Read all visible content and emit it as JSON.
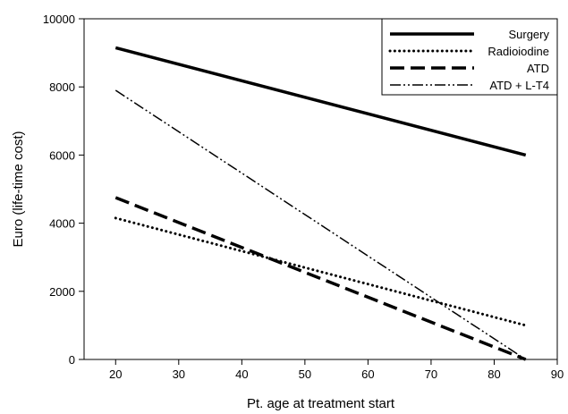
{
  "chart_data": {
    "type": "line",
    "title": "",
    "xlabel": "Pt. age at treatment start",
    "ylabel": "Euro (life-time cost)",
    "xlim": [
      15,
      90
    ],
    "ylim": [
      0,
      10000
    ],
    "xticks": [
      20,
      30,
      40,
      50,
      60,
      70,
      80,
      90
    ],
    "yticks": [
      0,
      2000,
      4000,
      6000,
      8000,
      10000
    ],
    "grid": false,
    "legend_position": "top-right",
    "series": [
      {
        "name": "Surgery",
        "x": [
          20,
          85
        ],
        "y": [
          9150,
          6000
        ],
        "style": "solid-thick",
        "color": "#000000"
      },
      {
        "name": "Radioiodine",
        "x": [
          20,
          85
        ],
        "y": [
          4150,
          1000
        ],
        "style": "dotted",
        "color": "#000000"
      },
      {
        "name": "ATD",
        "x": [
          20,
          85
        ],
        "y": [
          4750,
          0
        ],
        "style": "dashed",
        "color": "#000000"
      },
      {
        "name": "ATD + L-T4",
        "x": [
          20,
          85
        ],
        "y": [
          7900,
          0
        ],
        "style": "dash-dot-dot",
        "color": "#000000"
      }
    ]
  }
}
